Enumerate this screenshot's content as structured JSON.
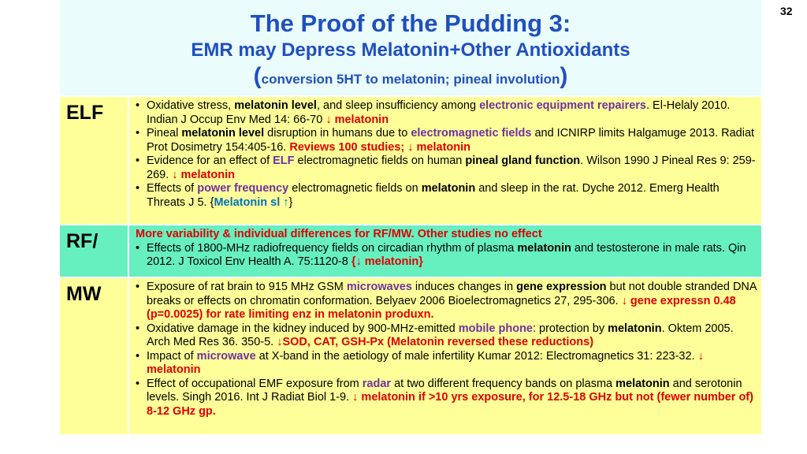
{
  "slide_number": "32",
  "title": "The Proof of the Pudding 3:",
  "subtitle": "EMR may Depress Melatonin+Other Antioxidants",
  "note": [
    {
      "text": "(",
      "style": "paren"
    },
    "conversion 5HT to melatonin; pineal involution",
    {
      "text": ")",
      "style": "paren"
    }
  ],
  "rows": [
    {
      "label": "ELF",
      "color": "#ffff99",
      "items": [
        [
          "Oxidative stress, ",
          {
            "text": "melatonin level",
            "style": "bold"
          },
          ", and sleep insufficiency among ",
          {
            "text": "electronic equipment repairers",
            "style": "purple"
          },
          ". El-Helaly 2010. Indian J Occup Env Med 14: 66-70 ",
          {
            "text": "↓ melatonin",
            "style": "red"
          }
        ],
        [
          "Pineal ",
          {
            "text": "melatonin level",
            "style": "bold"
          },
          " disruption in humans due to ",
          {
            "text": "electromagnetic fields",
            "style": "purple"
          },
          " and ICNIRP limits Halgamuge 2013. Radiat Prot Dosimetry 154:405-16. ",
          {
            "text": "Reviews 100 studies; ↓ melatonin",
            "style": "red"
          }
        ],
        [
          "Evidence for an effect of ",
          {
            "text": "ELF",
            "style": "purple"
          },
          " electromagnetic fields on human ",
          {
            "text": "pineal gland function",
            "style": "bold"
          },
          ". Wilson 1990 J Pineal Res 9: 259-269. ",
          {
            "text": "↓ melatonin",
            "style": "red"
          }
        ],
        [
          "Effects of ",
          {
            "text": "power frequency",
            "style": "purple"
          },
          " electromagnetic fields on ",
          {
            "text": "melatonin",
            "style": "bold"
          },
          " and sleep in the rat. Dyche 2012. Emerg Health Threats J 5. {",
          {
            "text": "Melatonin sl ↑",
            "style": "blue"
          },
          "}"
        ]
      ]
    },
    {
      "label": "RF/",
      "color": "#66f0c0",
      "lead": {
        "text": "More variability & individual differences for RF/MW. Other studies no effect",
        "style": "red"
      },
      "items": [
        [
          "Effects of 1800-MHz radiofrequency fields on circadian rhythm of plasma ",
          {
            "text": "melatonin",
            "style": "bold"
          },
          " and testosterone in male rats. Qin 2012. J Toxicol Env Health A. 75:1120-8 ",
          {
            "text": "{↓ melatonin}",
            "style": "red"
          }
        ]
      ]
    },
    {
      "label": "MW",
      "color": "#ffff99",
      "items": [
        [
          "Exposure of rat brain to 915 MHz GSM ",
          {
            "text": "microwaves",
            "style": "purple"
          },
          " induces changes in ",
          {
            "text": "gene expression",
            "style": "bold"
          },
          " but not double stranded DNA breaks or effects on chromatin conformation. Belyaev 2006 Bioelectromagnetics 27, 295-306. ",
          {
            "text": "↓ gene expressn 0.48 (p=0.0025) for rate limiting enz in melatonin produxn.",
            "style": "red"
          }
        ],
        [
          "Oxidative damage in the kidney induced by 900-MHz-emitted ",
          {
            "text": "mobile phone",
            "style": "purple"
          },
          ": protection by ",
          {
            "text": "melatonin",
            "style": "bold"
          },
          ". Oktem 2005. Arch Med Res 36. 350-5.  ",
          {
            "text": "↓SOD, CAT, GSH-Px (Melatonin reversed these reductions)",
            "style": "red"
          }
        ],
        [
          "Impact of ",
          {
            "text": "microwave",
            "style": "purple"
          },
          " at X-band in the aetiology of male infertility Kumar 2012: Electromagnetics 31: 223-32. ",
          {
            "text": "↓ melatonin",
            "style": "red"
          }
        ],
        [
          "Effect of occupational EMF exposure from ",
          {
            "text": "radar",
            "style": "purple"
          },
          " at two different frequency bands on plasma ",
          {
            "text": "melatonin",
            "style": "bold"
          },
          " and serotonin levels. Singh 2016. Int J Radiat Biol 1-9. ",
          {
            "text": "↓ melatonin if >10 yrs exposure, for 12.5-18 GHz but not (fewer number of) 8-12 GHz gp.",
            "style": "red"
          }
        ]
      ]
    }
  ]
}
